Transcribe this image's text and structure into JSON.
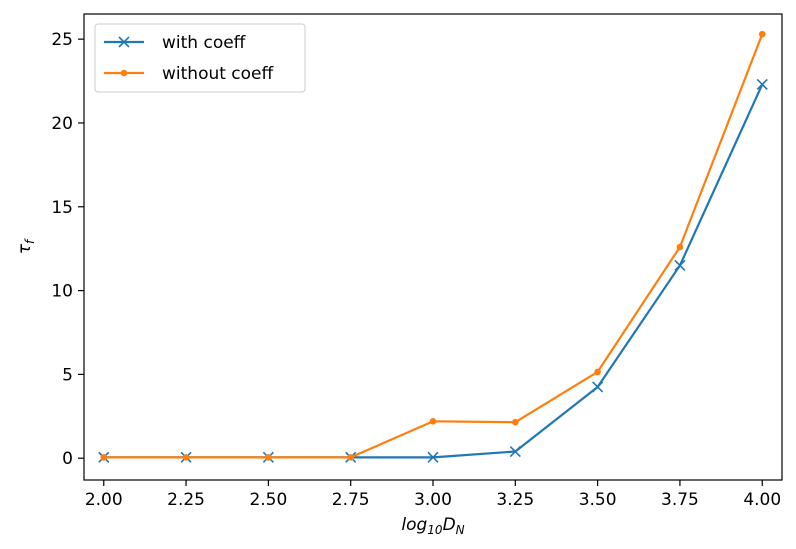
{
  "chart_data": {
    "type": "line",
    "title": "",
    "xlabel": {
      "main": "log",
      "sub1": "10",
      "mid": "D",
      "sub2": "N"
    },
    "ylabel": {
      "main": "τ",
      "sub": "f"
    },
    "xlim": [
      1.94,
      4.06
    ],
    "ylim": [
      -1.3,
      26.5
    ],
    "x": [
      2.0,
      2.25,
      2.5,
      2.75,
      3.0,
      3.25,
      3.5,
      3.75,
      4.0
    ],
    "xticks": [
      2.0,
      2.25,
      2.5,
      2.75,
      3.0,
      3.25,
      3.5,
      3.75,
      4.0
    ],
    "xtick_labels": [
      "2.00",
      "2.25",
      "2.50",
      "2.75",
      "3.00",
      "3.25",
      "3.50",
      "3.75",
      "4.00"
    ],
    "yticks": [
      0,
      5,
      10,
      15,
      20,
      25
    ],
    "ytick_labels": [
      "0",
      "5",
      "10",
      "15",
      "20",
      "25"
    ],
    "grid": false,
    "legend_position": "top-left",
    "series": [
      {
        "name": "with coeff",
        "color": "#1f77b4",
        "marker": "x",
        "values": [
          0.05,
          0.05,
          0.05,
          0.05,
          0.05,
          0.4,
          4.25,
          11.5,
          22.3
        ]
      },
      {
        "name": "without coeff",
        "color": "#ff7f0e",
        "marker": "dot",
        "values": [
          0.05,
          0.05,
          0.05,
          0.05,
          2.2,
          2.15,
          5.15,
          12.6,
          25.3
        ]
      }
    ]
  }
}
